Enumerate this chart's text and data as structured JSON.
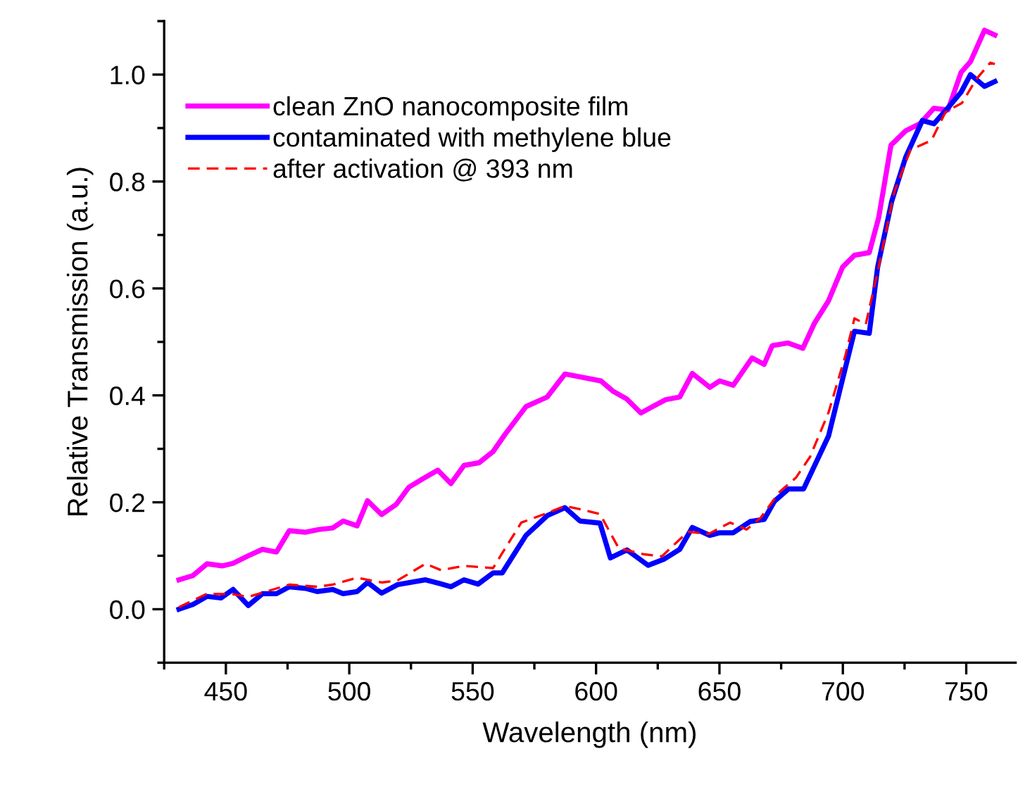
{
  "chart_data": {
    "type": "line",
    "xlabel": "Wavelength (nm)",
    "ylabel": "Relative Transmission (a.u.)",
    "xlim": [
      425,
      770
    ],
    "ylim": [
      -0.1,
      1.1
    ],
    "xticks": [
      {
        "value": 425,
        "label": null
      },
      450,
      {
        "value": 475,
        "label": null
      },
      500,
      {
        "value": 525,
        "label": null
      },
      550,
      {
        "value": 575,
        "label": null
      },
      600,
      {
        "value": 625,
        "label": null
      },
      650,
      {
        "value": 675,
        "label": null
      },
      700,
      {
        "value": 725,
        "label": null
      },
      750
    ],
    "yticks": [
      {
        "value": -0.1,
        "label": null
      },
      {
        "value": 0,
        "label": "0.0"
      },
      {
        "value": 0.1,
        "label": null
      },
      {
        "value": 0.2,
        "label": "0.2"
      },
      {
        "value": 0.3,
        "label": null
      },
      {
        "value": 0.4,
        "label": "0.4"
      },
      {
        "value": 0.5,
        "label": null
      },
      {
        "value": 0.6,
        "label": "0.6"
      },
      {
        "value": 0.7,
        "label": null
      },
      {
        "value": 0.8,
        "label": "0.8"
      },
      {
        "value": 0.9,
        "label": null
      },
      {
        "value": 1.0,
        "label": "1.0"
      },
      {
        "value": 1.1,
        "label": null
      }
    ],
    "grid": false,
    "legend": "top left",
    "marker": "none",
    "series": [
      {
        "name": "clean ZnO nanocomposite film",
        "color": "#ff00ff",
        "line_style": "solid",
        "x": [
          431,
          436.7,
          442.4,
          448.5,
          452.9,
          459.1,
          464.8,
          470.5,
          475.7,
          482.3,
          487.6,
          493.3,
          497.5,
          503.2,
          507.4,
          513.1,
          519,
          524.1,
          529.8,
          535.9,
          541.2,
          546.5,
          552.6,
          558.3,
          563.1,
          571.6,
          580.2,
          587.4,
          602,
          606.8,
          612.5,
          618.2,
          622.9,
          628.2,
          633.9,
          639,
          646.1,
          650.1,
          655.6,
          663.2,
          668.1,
          671.4,
          677.7,
          683.8,
          688.5,
          694.2,
          699.9,
          704.7,
          710.7,
          714.5,
          719.5,
          725.5,
          731.2,
          736.9,
          742.6,
          747.9,
          751.7,
          757.4,
          761.6
        ],
        "values": [
          0.055,
          0.063,
          0.085,
          0.081,
          0.086,
          0.1,
          0.112,
          0.107,
          0.147,
          0.144,
          0.149,
          0.152,
          0.165,
          0.156,
          0.203,
          0.177,
          0.196,
          0.228,
          0.244,
          0.26,
          0.235,
          0.269,
          0.274,
          0.295,
          0.327,
          0.379,
          0.397,
          0.44,
          0.427,
          0.408,
          0.393,
          0.367,
          0.379,
          0.392,
          0.397,
          0.441,
          0.415,
          0.427,
          0.419,
          0.47,
          0.458,
          0.493,
          0.498,
          0.488,
          0.535,
          0.577,
          0.64,
          0.662,
          0.667,
          0.732,
          0.868,
          0.895,
          0.908,
          0.937,
          0.934,
          1.004,
          1.024,
          1.083,
          1.074
        ]
      },
      {
        "name": "contaminated with methylene blue",
        "color": "#0000ff",
        "line_style": "solid",
        "x": [
          431,
          436.7,
          442.4,
          448,
          452.9,
          459.1,
          464.8,
          470.5,
          475.7,
          482.3,
          487,
          493.3,
          497.5,
          503.2,
          507.4,
          513.1,
          519.6,
          530.9,
          536.7,
          541.2,
          546.5,
          552.2,
          558.3,
          562,
          571.6,
          580.2,
          587.4,
          593.5,
          601.6,
          605.8,
          612.5,
          621.1,
          627.7,
          633.9,
          639,
          646.1,
          650.1,
          655.6,
          662.4,
          668.1,
          672.3,
          678,
          684.1,
          694.2,
          698.9,
          704.7,
          710.7,
          714.1,
          719.8,
          725.5,
          732.2,
          736.9,
          742.6,
          747.9,
          751.7,
          757.4,
          761.6
        ],
        "values": [
          0.0,
          0.009,
          0.024,
          0.021,
          0.037,
          0.007,
          0.029,
          0.029,
          0.042,
          0.039,
          0.033,
          0.037,
          0.029,
          0.033,
          0.05,
          0.03,
          0.046,
          0.055,
          0.048,
          0.042,
          0.055,
          0.047,
          0.068,
          0.068,
          0.138,
          0.175,
          0.19,
          0.165,
          0.161,
          0.096,
          0.111,
          0.082,
          0.094,
          0.112,
          0.153,
          0.138,
          0.143,
          0.143,
          0.164,
          0.168,
          0.202,
          0.225,
          0.225,
          0.324,
          0.412,
          0.52,
          0.516,
          0.64,
          0.763,
          0.846,
          0.914,
          0.908,
          0.938,
          0.967,
          1.0,
          0.978,
          0.987
        ]
      },
      {
        "name": "after activation @ 393 nm",
        "color": "#ff0000",
        "line_style": "dashed",
        "x": [
          431,
          442.4,
          452.9,
          459.1,
          464.8,
          475.7,
          487,
          493.3,
          503.2,
          513.1,
          519.6,
          530.9,
          537.2,
          546.5,
          558.3,
          562,
          569.7,
          580.2,
          587.4,
          593.5,
          601.6,
          609.2,
          619.1,
          626.7,
          637.2,
          645.7,
          654.3,
          661,
          666.7,
          674.3,
          681,
          686.7,
          694.2,
          701,
          704.7,
          709.3,
          714.5,
          720.8,
          727.4,
          735.9,
          741.6,
          748.3,
          754,
          759.7,
          761.6
        ],
        "values": [
          0.004,
          0.029,
          0.028,
          0.023,
          0.031,
          0.046,
          0.042,
          0.046,
          0.059,
          0.05,
          0.054,
          0.085,
          0.073,
          0.081,
          0.077,
          0.105,
          0.162,
          0.18,
          0.193,
          0.187,
          0.178,
          0.114,
          0.103,
          0.099,
          0.145,
          0.141,
          0.162,
          0.149,
          0.171,
          0.219,
          0.246,
          0.285,
          0.368,
          0.474,
          0.544,
          0.533,
          0.64,
          0.78,
          0.859,
          0.877,
          0.93,
          0.947,
          0.991,
          1.022,
          1.02
        ]
      }
    ]
  }
}
